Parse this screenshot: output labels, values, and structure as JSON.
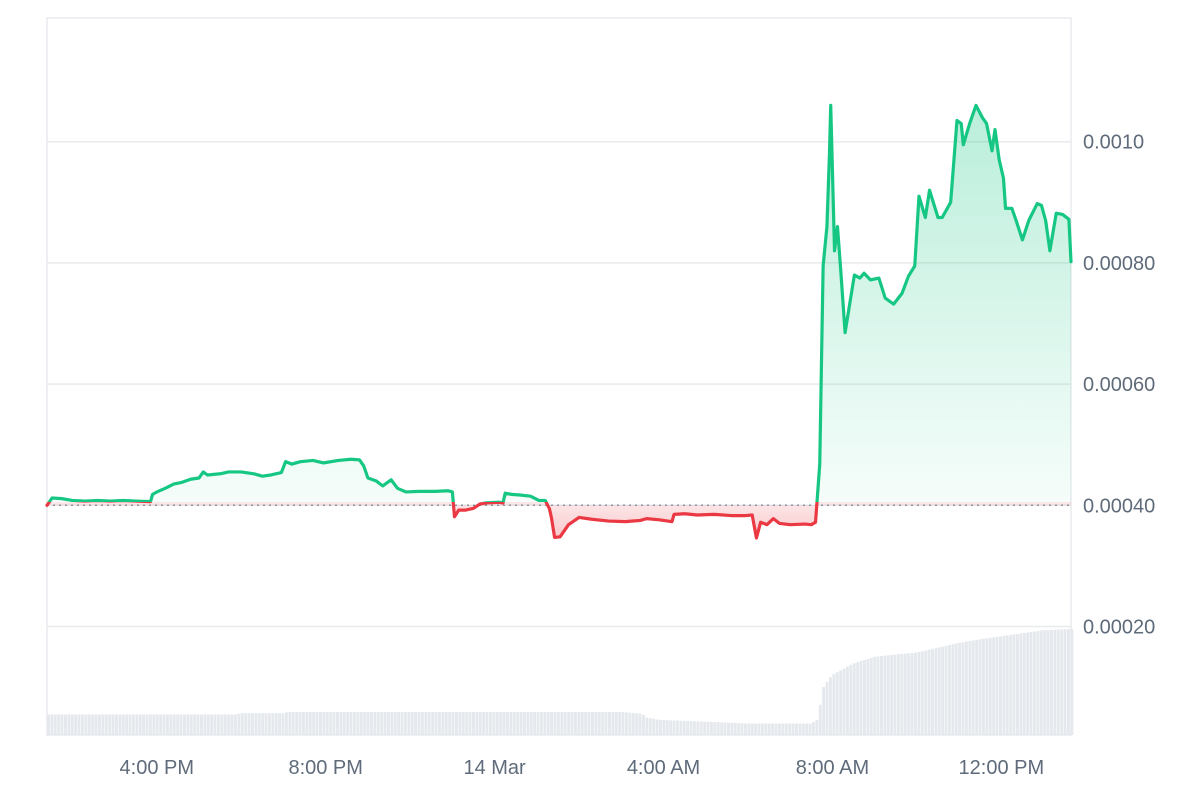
{
  "chart_data": {
    "type": "line",
    "baseline": 0.0004,
    "colors": {
      "up": "#16c784",
      "down": "#ea3943",
      "grid": "#e8eaed",
      "baseline_dots": "#8a929c",
      "volume": "#e5e9ee",
      "axis_text": "#5f6b7a"
    },
    "x_axis": {
      "ticks": [
        {
          "label": "4:00 PM",
          "x": 4
        },
        {
          "label": "8:00 PM",
          "x": 8
        },
        {
          "label": "14 Mar",
          "x": 12
        },
        {
          "label": "4:00 AM",
          "x": 16
        },
        {
          "label": "8:00 AM",
          "x": 20
        },
        {
          "label": "12:00 PM",
          "x": 24
        }
      ],
      "range": [
        1.4,
        25.65
      ]
    },
    "y_axis": {
      "ticks": [
        {
          "label": "0.00020",
          "value": 0.0002
        },
        {
          "label": "0.00040",
          "value": 0.0004
        },
        {
          "label": "0.00060",
          "value": 0.0006
        },
        {
          "label": "0.00080",
          "value": 0.0008
        },
        {
          "label": "0.0010",
          "value": 0.001
        }
      ],
      "range": [
        2.09e-05,
        0.0012042
      ]
    },
    "series": [
      {
        "points": [
          [
            1.4,
            0.0004
          ],
          [
            1.52,
            0.000412
          ],
          [
            1.75,
            0.000411
          ],
          [
            2.0,
            0.000408
          ],
          [
            2.3,
            0.000407
          ],
          [
            2.6,
            0.000408
          ],
          [
            2.9,
            0.000407
          ],
          [
            3.2,
            0.000408
          ],
          [
            3.5,
            0.000407
          ],
          [
            3.85,
            0.000406
          ],
          [
            3.9,
            0.000418
          ],
          [
            4.0,
            0.000422
          ],
          [
            4.2,
            0.000428
          ],
          [
            4.4,
            0.000435
          ],
          [
            4.6,
            0.000438
          ],
          [
            4.8,
            0.000443
          ],
          [
            5.0,
            0.000445
          ],
          [
            5.1,
            0.000455
          ],
          [
            5.2,
            0.00045
          ],
          [
            5.5,
            0.000452
          ],
          [
            5.7,
            0.000455
          ],
          [
            6.0,
            0.000455
          ],
          [
            6.3,
            0.000452
          ],
          [
            6.5,
            0.000448
          ],
          [
            6.7,
            0.00045
          ],
          [
            6.95,
            0.000454
          ],
          [
            7.05,
            0.000472
          ],
          [
            7.2,
            0.000468
          ],
          [
            7.4,
            0.000472
          ],
          [
            7.7,
            0.000474
          ],
          [
            7.95,
            0.00047
          ],
          [
            8.3,
            0.000474
          ],
          [
            8.6,
            0.000476
          ],
          [
            8.8,
            0.000475
          ],
          [
            8.9,
            0.000465
          ],
          [
            9.0,
            0.000445
          ],
          [
            9.2,
            0.00044
          ],
          [
            9.35,
            0.000432
          ],
          [
            9.55,
            0.000442
          ],
          [
            9.7,
            0.000428
          ],
          [
            9.9,
            0.000422
          ],
          [
            10.2,
            0.000423
          ],
          [
            10.6,
            0.000423
          ],
          [
            10.9,
            0.000424
          ],
          [
            11.0,
            0.000422
          ],
          [
            11.05,
            0.000381
          ],
          [
            11.15,
            0.000392
          ],
          [
            11.3,
            0.000392
          ],
          [
            11.5,
            0.000395
          ],
          [
            11.65,
            0.000402
          ],
          [
            11.8,
            0.000404
          ],
          [
            12.1,
            0.000405
          ],
          [
            12.2,
            0.000404
          ],
          [
            12.25,
            0.00042
          ],
          [
            12.4,
            0.000418
          ],
          [
            12.6,
            0.000417
          ],
          [
            12.85,
            0.000415
          ],
          [
            13.05,
            0.000408
          ],
          [
            13.2,
            0.000408
          ],
          [
            13.3,
            0.000394
          ],
          [
            13.35,
            0.000378
          ],
          [
            13.42,
            0.000347
          ],
          [
            13.55,
            0.000348
          ],
          [
            13.75,
            0.000368
          ],
          [
            14.0,
            0.00038
          ],
          [
            14.3,
            0.000377
          ],
          [
            14.7,
            0.000374
          ],
          [
            15.1,
            0.000373
          ],
          [
            15.45,
            0.000375
          ],
          [
            15.6,
            0.000378
          ],
          [
            15.9,
            0.000376
          ],
          [
            16.1,
            0.000374
          ],
          [
            16.2,
            0.000373
          ],
          [
            16.25,
            0.000385
          ],
          [
            16.5,
            0.000386
          ],
          [
            16.8,
            0.000384
          ],
          [
            17.2,
            0.000385
          ],
          [
            17.6,
            0.000383
          ],
          [
            17.95,
            0.000383
          ],
          [
            18.1,
            0.000384
          ],
          [
            18.2,
            0.000346
          ],
          [
            18.3,
            0.000372
          ],
          [
            18.45,
            0.000368
          ],
          [
            18.6,
            0.000378
          ],
          [
            18.75,
            0.00037
          ],
          [
            19.0,
            0.000368
          ],
          [
            19.35,
            0.000369
          ],
          [
            19.5,
            0.000368
          ],
          [
            19.6,
            0.000372
          ],
          [
            19.7,
            0.000468
          ],
          [
            19.78,
            0.000795
          ],
          [
            19.87,
            0.00086
          ],
          [
            19.93,
            0.00098
          ],
          [
            19.96,
            0.00106
          ],
          [
            20.05,
            0.00082
          ],
          [
            20.12,
            0.00086
          ],
          [
            20.2,
            0.000785
          ],
          [
            20.3,
            0.000685
          ],
          [
            20.52,
            0.00078
          ],
          [
            20.65,
            0.000775
          ],
          [
            20.75,
            0.000783
          ],
          [
            20.9,
            0.000772
          ],
          [
            21.1,
            0.000775
          ],
          [
            21.25,
            0.000742
          ],
          [
            21.45,
            0.000732
          ],
          [
            21.65,
            0.00075
          ],
          [
            21.8,
            0.000778
          ],
          [
            21.95,
            0.000795
          ],
          [
            22.05,
            0.00091
          ],
          [
            22.2,
            0.000875
          ],
          [
            22.3,
            0.00092
          ],
          [
            22.5,
            0.000875
          ],
          [
            22.6,
            0.000875
          ],
          [
            22.8,
            0.0009
          ],
          [
            22.95,
            0.001035
          ],
          [
            23.05,
            0.00103
          ],
          [
            23.1,
            0.000995
          ],
          [
            23.25,
            0.00103
          ],
          [
            23.4,
            0.00106
          ],
          [
            23.55,
            0.00104
          ],
          [
            23.65,
            0.00103
          ],
          [
            23.78,
            0.000985
          ],
          [
            23.85,
            0.00102
          ],
          [
            23.95,
            0.00097
          ],
          [
            24.05,
            0.00094
          ],
          [
            24.1,
            0.00089
          ],
          [
            24.25,
            0.00089
          ],
          [
            24.35,
            0.00087
          ],
          [
            24.5,
            0.000838
          ],
          [
            24.65,
            0.00087
          ],
          [
            24.85,
            0.000898
          ],
          [
            24.95,
            0.000895
          ],
          [
            25.05,
            0.00087
          ],
          [
            25.15,
            0.00082
          ],
          [
            25.3,
            0.000882
          ],
          [
            25.45,
            0.00088
          ],
          [
            25.6,
            0.000872
          ],
          [
            25.65,
            0.000802
          ]
        ]
      }
    ],
    "volume": [
      [
        1.4,
        3.4e-05
      ],
      [
        5.9,
        3.4e-05
      ],
      [
        6.0,
        3.6e-05
      ],
      [
        7.0,
        3.6e-05
      ],
      [
        7.1,
        3.8e-05
      ],
      [
        15.0,
        3.8e-05
      ],
      [
        15.5,
        3.5e-05
      ],
      [
        15.6,
        2.9e-05
      ],
      [
        15.9,
        2.5e-05
      ],
      [
        17.0,
        2.2e-05
      ],
      [
        18.0,
        1.9e-05
      ],
      [
        19.5,
        1.9e-05
      ],
      [
        19.65,
        2.5e-05
      ],
      [
        19.8,
        8e-05
      ],
      [
        20.0,
        9.9e-05
      ],
      [
        20.5,
        0.000118
      ],
      [
        21.0,
        0.000129
      ],
      [
        21.5,
        0.000133
      ],
      [
        22.0,
        0.000136
      ],
      [
        22.5,
        0.000144
      ],
      [
        23.0,
        0.000152
      ],
      [
        23.5,
        0.000158
      ],
      [
        24.0,
        0.000163
      ],
      [
        24.5,
        0.000168
      ],
      [
        25.0,
        0.000173
      ],
      [
        25.65,
        0.000175
      ]
    ]
  }
}
